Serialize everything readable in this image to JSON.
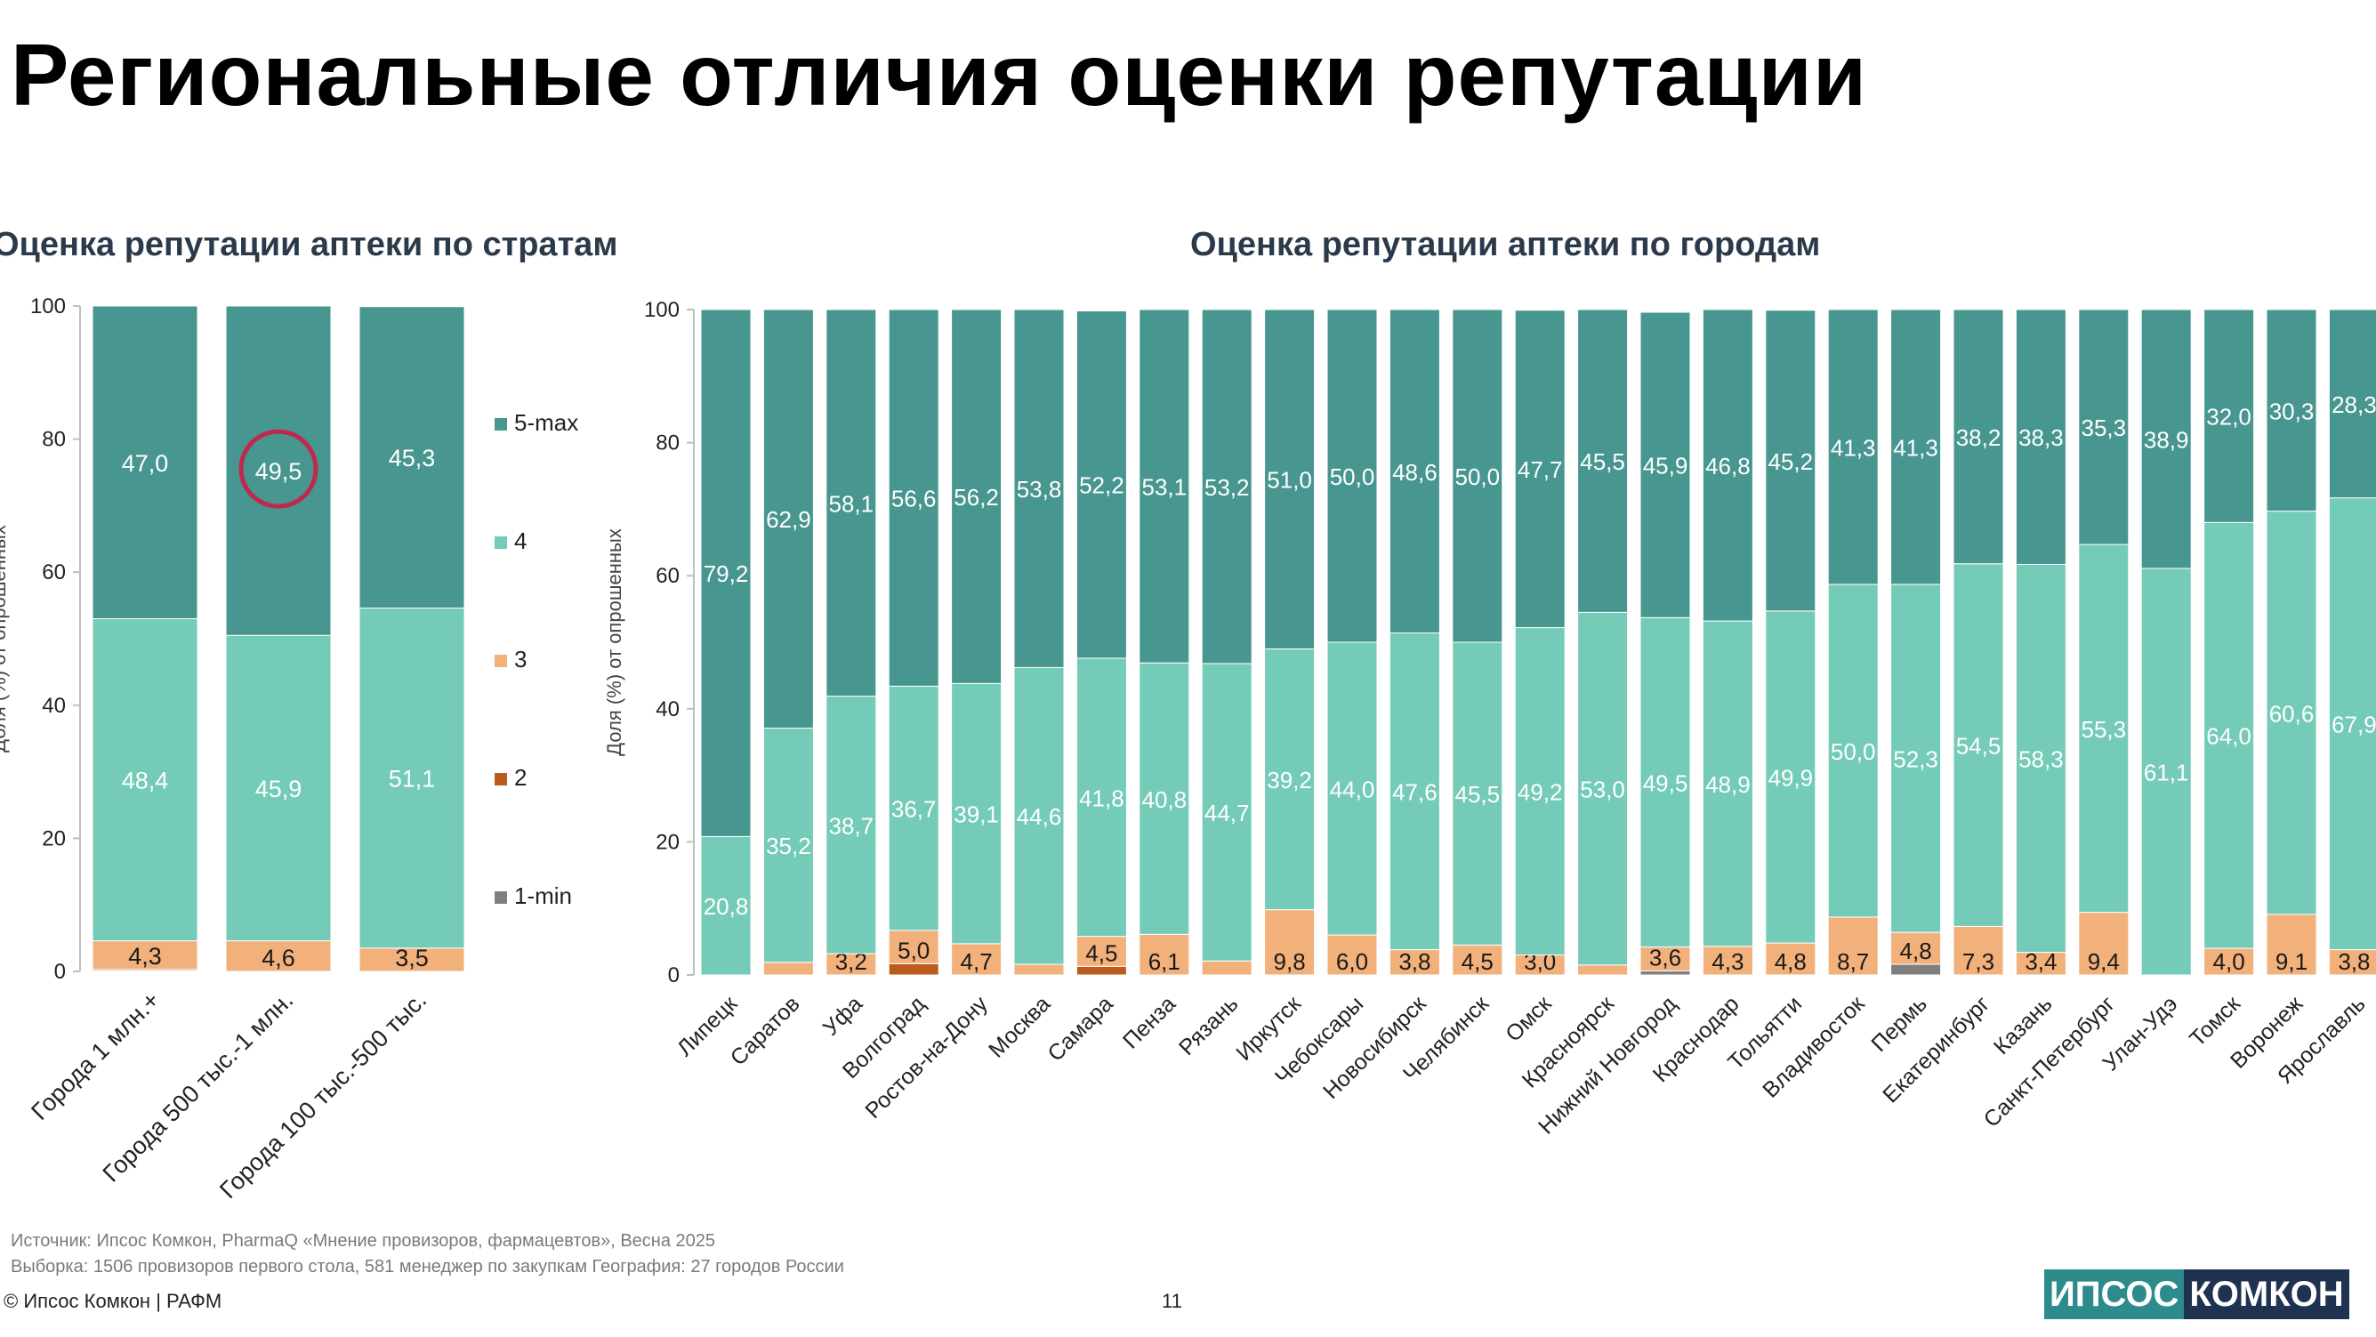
{
  "title": "Региональные отличия оценки репутации",
  "page_number": "11",
  "footer": {
    "source": "Источник: Ипсос Комкон, PharmaQ «Мнение провизоров, фармацевтов», Весна 2025",
    "sample": "Выборка: 1506 провизоров первого стола, 581 менеджер по закупкам География: 27 городов России",
    "copyright": "© Ипсос Комкон | РАФМ"
  },
  "logo": {
    "part1": "ИПСОС",
    "part2": "КОМКОН"
  },
  "colors": {
    "5-max": "#47968f",
    "4": "#74cbb7",
    "3": "#f2b07b",
    "2": "#bd5a1e",
    "1-min": "#7f7f7f",
    "highlight": "#c0284e"
  },
  "chart_data": [
    {
      "type": "bar",
      "stacked": true,
      "title": "Оценка репутации аптеки по стратам",
      "ylabel": "Доля (%) от опрошенных",
      "ylim": [
        0,
        100
      ],
      "yticks": [
        "0",
        "20",
        "40",
        "60",
        "80",
        "100"
      ],
      "legend_position": "right",
      "categories": [
        "Города 1 млн.+",
        "Города 500 тыс.-1 млн.",
        "Города 100 тыс.-500 тыс."
      ],
      "series": [
        {
          "name": "1-min",
          "values": [
            0.1,
            0.0,
            0.0
          ],
          "labels": [
            "",
            "",
            ""
          ]
        },
        {
          "name": "2",
          "values": [
            0.2,
            0.0,
            0.0
          ],
          "labels": [
            "",
            "",
            ""
          ]
        },
        {
          "name": "3",
          "values": [
            4.3,
            4.6,
            3.5
          ],
          "labels": [
            "4,3",
            "4,6",
            "3,5"
          ]
        },
        {
          "name": "4",
          "values": [
            48.4,
            45.9,
            51.1
          ],
          "labels": [
            "48,4",
            "45,9",
            "51,1"
          ]
        },
        {
          "name": "5-max",
          "values": [
            47.0,
            49.5,
            45.3
          ],
          "labels": [
            "47,0",
            "49,5",
            "45,3"
          ]
        }
      ],
      "highlight": {
        "series": "5-max",
        "category": "Города 500 тыс.-1 млн."
      }
    },
    {
      "type": "bar",
      "stacked": true,
      "title": "Оценка репутации аптеки по городам",
      "ylabel": "Доля (%) от опрошенных",
      "ylim": [
        0,
        100
      ],
      "yticks": [
        "0",
        "20",
        "40",
        "60",
        "80",
        "100"
      ],
      "categories": [
        "Липецк",
        "Саратов",
        "Уфа",
        "Волгоград",
        "Ростов-на-Дону",
        "Москва",
        "Самара",
        "Пенза",
        "Рязань",
        "Иркутск",
        "Чебоксары",
        "Новосибирск",
        "Челябинск",
        "Омск",
        "Красноярск",
        "Нижний Новгород",
        "Краснодар",
        "Тольятти",
        "Владивосток",
        "Пермь",
        "Екатеринбург",
        "Казань",
        "Санкт-Петербург",
        "Улан-Удэ",
        "Томск",
        "Воронеж",
        "Ярославль"
      ],
      "series": [
        {
          "name": "1-min",
          "values": [
            0,
            0,
            0,
            0,
            0,
            0,
            0,
            0,
            0,
            0,
            0,
            0,
            0,
            0,
            0,
            0.6,
            0,
            0,
            0,
            1.6,
            0,
            0,
            0,
            0,
            0,
            0,
            0
          ],
          "labels": [
            "",
            "",
            "",
            "",
            "",
            "",
            "",
            "",
            "",
            "",
            "",
            "",
            "",
            "",
            "",
            "",
            "",
            "",
            "",
            "",
            "",
            "",
            "",
            "",
            "",
            "",
            ""
          ]
        },
        {
          "name": "2",
          "values": [
            0,
            0,
            0,
            1.7,
            0,
            0,
            1.3,
            0,
            0,
            0,
            0,
            0,
            0,
            0,
            0,
            0,
            0,
            0,
            0,
            0,
            0,
            0,
            0,
            0,
            0,
            0,
            0
          ],
          "labels": [
            "",
            "",
            "",
            "",
            "",
            "",
            "",
            "",
            "",
            "",
            "",
            "",
            "",
            "",
            "",
            "",
            "",
            "",
            "",
            "",
            "",
            "",
            "",
            "",
            "",
            "",
            ""
          ]
        },
        {
          "name": "3",
          "values": [
            0,
            1.9,
            3.2,
            5.0,
            4.7,
            1.6,
            4.5,
            6.1,
            2.1,
            9.8,
            6.0,
            3.8,
            4.5,
            3.0,
            1.5,
            3.6,
            4.3,
            4.8,
            8.7,
            4.8,
            7.3,
            3.4,
            9.4,
            0,
            4.0,
            9.1,
            3.8
          ],
          "labels": [
            "",
            "",
            "3,2",
            "5,0",
            "4,7",
            "",
            "4,5",
            "6,1",
            "",
            "9,8",
            "6,0",
            "3,8",
            "4,5",
            "3,0",
            "",
            "3,6",
            "4,3",
            "4,8",
            "8,7",
            "4,8",
            "7,3",
            "3,4",
            "9,4",
            "",
            "4,0",
            "9,1",
            "3,8"
          ]
        },
        {
          "name": "4",
          "values": [
            20.8,
            35.2,
            38.7,
            36.7,
            39.1,
            44.6,
            41.8,
            40.8,
            44.7,
            39.2,
            44.0,
            47.6,
            45.5,
            49.2,
            53.0,
            49.5,
            48.9,
            49.9,
            50.0,
            52.3,
            54.5,
            58.3,
            55.3,
            61.1,
            64.0,
            60.6,
            67.9
          ],
          "labels": [
            "20,8",
            "35,2",
            "38,7",
            "36,7",
            "39,1",
            "44,6",
            "41,8",
            "40,8",
            "44,7",
            "39,2",
            "44,0",
            "47,6",
            "45,5",
            "49,2",
            "53,0",
            "49,5",
            "48,9",
            "49,9",
            "50,0",
            "52,3",
            "54,5",
            "58,3",
            "55,3",
            "61,1",
            "64,0",
            "60,6",
            "67,9"
          ]
        },
        {
          "name": "5-max",
          "values": [
            79.2,
            62.9,
            58.1,
            56.6,
            56.2,
            53.8,
            52.2,
            53.1,
            53.2,
            51.0,
            50.0,
            48.6,
            50.0,
            47.7,
            45.5,
            45.9,
            46.8,
            45.2,
            41.3,
            41.3,
            38.2,
            38.3,
            35.3,
            38.9,
            32.0,
            30.3,
            28.3
          ],
          "labels": [
            "79,2",
            "62,9",
            "58,1",
            "56,6",
            "56,2",
            "53,8",
            "52,2",
            "53,1",
            "53,2",
            "51,0",
            "50,0",
            "48,6",
            "50,0",
            "47,7",
            "45,5",
            "45,9",
            "46,8",
            "45,2",
            "41,3",
            "41,3",
            "38,2",
            "38,3",
            "35,3",
            "38,9",
            "32,0",
            "30,3",
            "28,3"
          ]
        }
      ]
    }
  ]
}
